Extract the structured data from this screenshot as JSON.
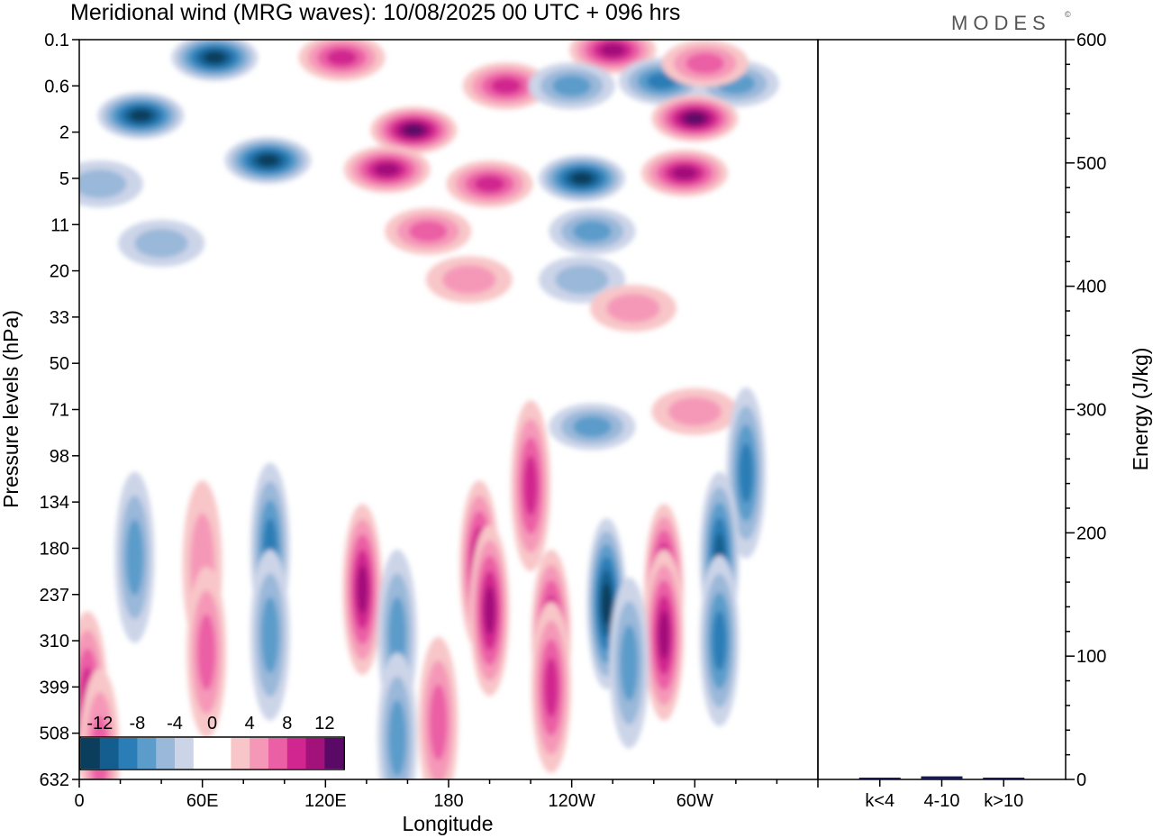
{
  "chart_data": {
    "type": "heatmap",
    "title": "Meridional wind (MRG waves):  10/08/2025  00 UTC  + 096 hrs",
    "brand": "MODES",
    "brand_mark": "©",
    "xlabel": "Longitude",
    "ylabel": "Pressure levels (hPa)",
    "x_ticks": [
      "0",
      "60E",
      "120E",
      "180",
      "120W",
      "60W"
    ],
    "y_ticks": [
      "0.1",
      "0.6",
      "2",
      "5",
      "11",
      "20",
      "33",
      "50",
      "71",
      "98",
      "134",
      "180",
      "237",
      "310",
      "399",
      "508",
      "632"
    ],
    "colorbar": {
      "labels": [
        "-12",
        "-8",
        "-4",
        "0",
        "4",
        "8",
        "12"
      ],
      "colors": [
        "#0b3d5c",
        "#135e8f",
        "#2a7db6",
        "#5b9ccb",
        "#9ab8d9",
        "#ccd4e8",
        "#ffffff",
        "#ffffff",
        "#f8c6c8",
        "#f598b8",
        "#eb5fa5",
        "#d1268f",
        "#a3117a",
        "#5a0a66"
      ]
    },
    "blobs": [
      {
        "lon": 66,
        "lev": 0.2,
        "v": -12
      },
      {
        "lon": 30,
        "lev": 1.3,
        "v": -11
      },
      {
        "lon": 92,
        "lev": 3.5,
        "v": -11
      },
      {
        "lon": 163,
        "lev": 1.9,
        "v": 14
      },
      {
        "lon": 150,
        "lev": 4.2,
        "v": 10
      },
      {
        "lon": 208,
        "lev": 0.6,
        "v": 8
      },
      {
        "lon": 200,
        "lev": 5.5,
        "v": 7
      },
      {
        "lon": 170,
        "lev": 12,
        "v": 5
      },
      {
        "lon": 190,
        "lev": 22,
        "v": 3
      },
      {
        "lon": 128,
        "lev": 0.2,
        "v": 8
      },
      {
        "lon": 260,
        "lev": 0.15,
        "v": 9
      },
      {
        "lon": 284,
        "lev": 0.5,
        "v": -8
      },
      {
        "lon": 240,
        "lev": 0.6,
        "v": -6
      },
      {
        "lon": 320,
        "lev": 0.55,
        "v": -6
      },
      {
        "lon": 300,
        "lev": 1.4,
        "v": 11
      },
      {
        "lon": 295,
        "lev": 4.5,
        "v": 9
      },
      {
        "lon": 305,
        "lev": 0.25,
        "v": 6
      },
      {
        "lon": 245,
        "lev": 5,
        "v": -13
      },
      {
        "lon": 250,
        "lev": 12,
        "v": -5
      },
      {
        "lon": 245,
        "lev": 22,
        "v": -4
      },
      {
        "lon": 10,
        "lev": 5.5,
        "v": -4
      },
      {
        "lon": 40,
        "lev": 14,
        "v": -3
      },
      {
        "lon": 270,
        "lev": 30,
        "v": 3
      },
      {
        "lon": 250,
        "lev": 80,
        "v": -6
      },
      {
        "lon": 300,
        "lev": 72,
        "v": 4
      },
      {
        "lon": 325,
        "lev": 110,
        "v": -7
      },
      {
        "lon": 220,
        "lev": 120,
        "v": 8
      },
      {
        "lon": 27,
        "lev": 190,
        "v": -6
      },
      {
        "lon": 93,
        "lev": 180,
        "v": -8
      },
      {
        "lon": 93,
        "lev": 300,
        "v": -6
      },
      {
        "lon": 60,
        "lev": 200,
        "v": 4
      },
      {
        "lon": 62,
        "lev": 330,
        "v": 6
      },
      {
        "lon": 138,
        "lev": 230,
        "v": 9
      },
      {
        "lon": 155,
        "lev": 300,
        "v": -6
      },
      {
        "lon": 195,
        "lev": 200,
        "v": 10
      },
      {
        "lon": 200,
        "lev": 260,
        "v": 9
      },
      {
        "lon": 230,
        "lev": 300,
        "v": 10
      },
      {
        "lon": 230,
        "lev": 400,
        "v": 7
      },
      {
        "lon": 257,
        "lev": 250,
        "v": -12
      },
      {
        "lon": 285,
        "lev": 230,
        "v": 13
      },
      {
        "lon": 285,
        "lev": 300,
        "v": 9
      },
      {
        "lon": 312,
        "lev": 190,
        "v": -9
      },
      {
        "lon": 312,
        "lev": 310,
        "v": -8
      },
      {
        "lon": 4,
        "lev": 420,
        "v": 7
      },
      {
        "lon": 10,
        "lev": 560,
        "v": 5
      },
      {
        "lon": 175,
        "lev": 480,
        "v": 5
      },
      {
        "lon": 155,
        "lev": 520,
        "v": -5
      },
      {
        "lon": 268,
        "lev": 350,
        "v": -6
      }
    ],
    "side_panel": {
      "ylabel": "Energy (J/kg)",
      "ylim": [
        0,
        600
      ],
      "y_ticks": [
        "0",
        "100",
        "200",
        "300",
        "400",
        "500",
        "600"
      ],
      "categories": [
        "k<4",
        "4-10",
        "k>10"
      ],
      "values": [
        0.6,
        2.5,
        0.4
      ],
      "bar_color": "#1a1a4a"
    }
  }
}
